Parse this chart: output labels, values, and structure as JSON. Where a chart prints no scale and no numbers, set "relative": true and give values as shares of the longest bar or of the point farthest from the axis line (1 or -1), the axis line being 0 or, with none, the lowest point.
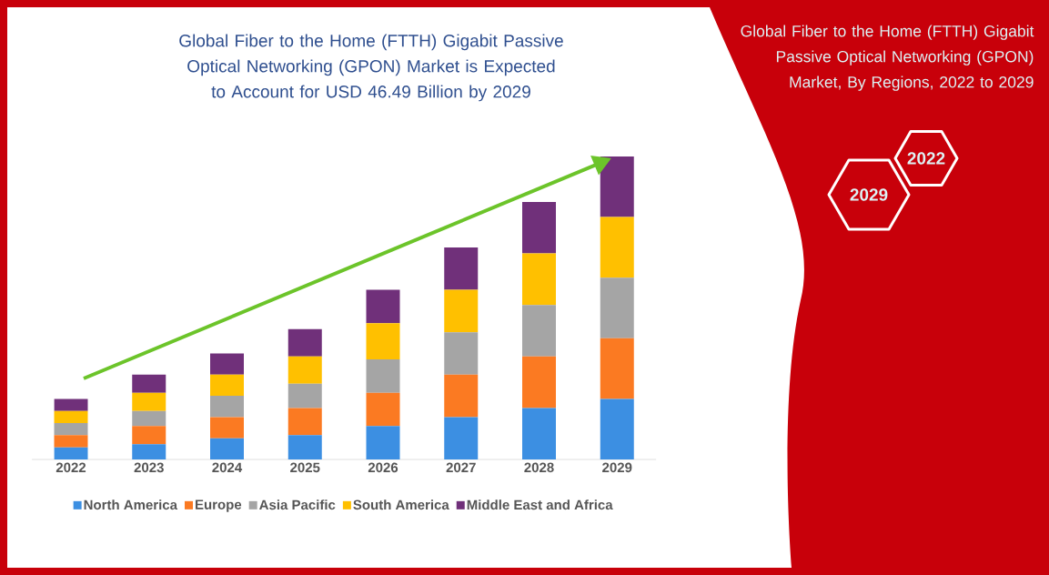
{
  "chart_data": {
    "type": "bar",
    "stacked": true,
    "relative": true,
    "legend": "bottom",
    "title": "Global Fiber to the Home (FTTH) Gigabit Passive Optical Networking (GPON) Market is Expected to Account for USD 46.49 Billion by 2029",
    "subtitle": "Global Fiber to the Home (FTTH) Gigabit Passive Optical Networking (GPON) Market, By Regions, 2022 to 2029",
    "annotations": [
      "2022",
      "2029"
    ],
    "categories": [
      "2022",
      "2023",
      "2024",
      "2025",
      "2026",
      "2027",
      "2028",
      "2029"
    ],
    "series": [
      {
        "name": "North America",
        "color": "#3c8fe2",
        "values": [
          0.04,
          0.05,
          0.07,
          0.08,
          0.11,
          0.14,
          0.17,
          0.2
        ]
      },
      {
        "name": "Europe",
        "color": "#fb7a22",
        "values": [
          0.04,
          0.06,
          0.07,
          0.09,
          0.11,
          0.14,
          0.17,
          0.2
        ]
      },
      {
        "name": "Asia Pacific",
        "color": "#a5a5a5",
        "values": [
          0.04,
          0.05,
          0.07,
          0.08,
          0.11,
          0.14,
          0.17,
          0.2
        ]
      },
      {
        "name": "South America",
        "color": "#ffc000",
        "values": [
          0.04,
          0.06,
          0.07,
          0.09,
          0.12,
          0.14,
          0.17,
          0.2
        ]
      },
      {
        "name": "Middle East and Africa",
        "color": "#70307a",
        "values": [
          0.04,
          0.06,
          0.07,
          0.09,
          0.11,
          0.14,
          0.17,
          0.2
        ]
      }
    ]
  }
}
